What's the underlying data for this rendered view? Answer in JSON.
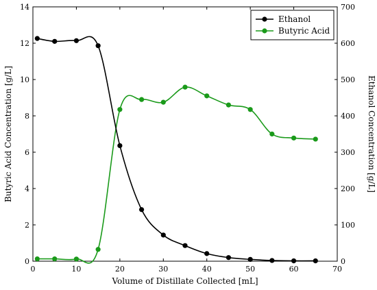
{
  "chart_data": {
    "type": "line",
    "xlabel": "Volume of Distillate Collected [mL]",
    "ylabel_left": "Butyric Acid Concentration [g/L]",
    "ylabel_right": "Ethanol Concentration [g/L]",
    "xlim": [
      0,
      70
    ],
    "ylim_left": [
      0,
      14
    ],
    "ylim_right": [
      0,
      700
    ],
    "x_ticks": [
      0,
      10,
      20,
      30,
      40,
      50,
      60,
      70
    ],
    "y_ticks_left": [
      0,
      2,
      4,
      6,
      8,
      10,
      12,
      14
    ],
    "y_ticks_right": [
      0,
      100,
      200,
      300,
      400,
      500,
      600,
      700
    ],
    "grid": false,
    "legend_position": "top-right",
    "series": [
      {
        "name": "Ethanol",
        "axis": "right",
        "color": "#000000",
        "x": [
          1,
          5,
          10,
          15,
          20,
          25,
          30,
          35,
          40,
          45,
          50,
          55,
          60,
          65
        ],
        "values": [
          613,
          605,
          607,
          593,
          318,
          142,
          72,
          43,
          21,
          10,
          5,
          2,
          1,
          1
        ]
      },
      {
        "name": "Butyric Acid",
        "axis": "left",
        "color": "#1a9a1a",
        "x": [
          1,
          5,
          10,
          15,
          20,
          25,
          30,
          35,
          40,
          45,
          50,
          55,
          60,
          65
        ],
        "values": [
          0.13,
          0.13,
          0.12,
          0.65,
          8.35,
          8.9,
          8.75,
          9.58,
          9.1,
          8.6,
          8.35,
          7.0,
          6.78,
          6.72
        ]
      }
    ]
  }
}
